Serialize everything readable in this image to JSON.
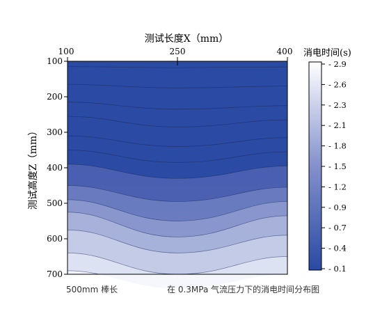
{
  "chart_data": {
    "type": "contour",
    "xlabel": "测试长度X（mm）",
    "ylabel": "测试高度Z（mm）",
    "x_ticks": [
      100,
      250,
      400
    ],
    "y_ticks": [
      100,
      200,
      300,
      400,
      500,
      600,
      700
    ],
    "xlim": [
      100,
      400
    ],
    "ylim": [
      100,
      700
    ],
    "y_inverted": true,
    "x_axis_position": "top",
    "colorbar": {
      "title": "消电时间(s)",
      "ticks": [
        "2.9",
        "2.6",
        "2.3",
        "2.1",
        "1.8",
        "1.5",
        "1.2",
        "0.9",
        "0.7",
        "0.4",
        "0.1"
      ],
      "range": [
        0.1,
        2.9
      ],
      "color_low": "#2a4aa3",
      "color_high": "#ffffff"
    },
    "contours": [
      {
        "z": [
          115,
          118,
          116
        ]
      },
      {
        "z": [
          165,
          175,
          170
        ]
      },
      {
        "z": [
          215,
          235,
          225
        ]
      },
      {
        "z": [
          255,
          285,
          265
        ]
      },
      {
        "z": [
          310,
          340,
          315
        ]
      },
      {
        "z": [
          350,
          385,
          355
        ]
      },
      {
        "z": [
          390,
          430,
          395
        ]
      },
      {
        "z": [
          450,
          495,
          455
        ]
      },
      {
        "z": [
          490,
          550,
          495
        ]
      },
      {
        "z": [
          525,
          595,
          535
        ]
      },
      {
        "z": [
          575,
          640,
          590
        ]
      },
      {
        "z": [
          640,
          700,
          650
        ]
      },
      {
        "z": [
          690,
          740,
          700
        ]
      }
    ],
    "annotations": {
      "left": "500mm 棒长",
      "right": "在 0.3MPa 气流压力下的消电时间分布图"
    }
  }
}
